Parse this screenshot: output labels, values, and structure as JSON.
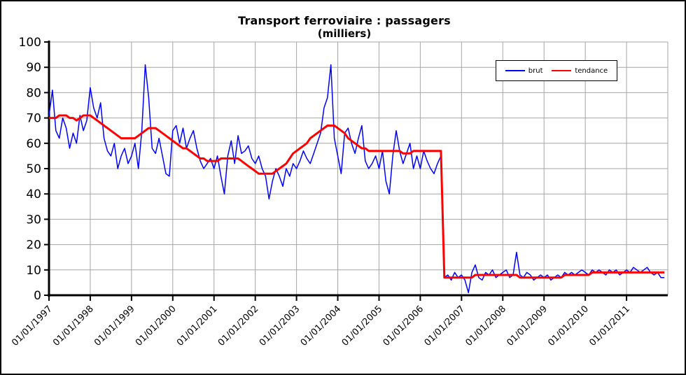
{
  "title": "Transport ferroviaire : passagers",
  "subtitle": "(milliers)",
  "legend": {
    "brut_label": "brut",
    "tendance_label": "tendance"
  },
  "colors": {
    "brut": "#0000ff",
    "tendance": "#ff0000",
    "grid": "#a6a6a6",
    "axis": "#000000",
    "background": "#ffffff"
  },
  "chart_data": {
    "type": "line",
    "title": "Transport ferroviaire : passagers (milliers)",
    "xlabel": "",
    "ylabel": "",
    "ylim": [
      0,
      100
    ],
    "y_tick_step": 10,
    "y_tick_labels": [
      "0",
      "10",
      "20",
      "30",
      "40",
      "50",
      "60",
      "70",
      "80",
      "90",
      "100"
    ],
    "x_tick_labels": [
      "01/01/1997",
      "01/01/1998",
      "01/01/1999",
      "01/01/2000",
      "01/01/2001",
      "01/01/2002",
      "01/01/2003",
      "01/01/2004",
      "01/01/2005",
      "01/01/2006",
      "01/01/2007",
      "01/01/2008",
      "01/01/2009",
      "01/01/2010",
      "01/01/2011"
    ],
    "x_frequency": "monthly",
    "grid": true,
    "legend_position": "top-right",
    "series": [
      {
        "name": "brut",
        "color": "#0000ff",
        "values": [
          71,
          81,
          65,
          62,
          70,
          66,
          58,
          64,
          60,
          71,
          65,
          69,
          82,
          74,
          70,
          76,
          62,
          57,
          55,
          60,
          50,
          55,
          58,
          52,
          55,
          60,
          50,
          65,
          91,
          78,
          58,
          56,
          62,
          55,
          48,
          47,
          65,
          67,
          60,
          66,
          58,
          62,
          65,
          58,
          53,
          50,
          52,
          54,
          50,
          55,
          47,
          40,
          55,
          61,
          52,
          63,
          56,
          57,
          59,
          54,
          52,
          55,
          50,
          47,
          38,
          45,
          50,
          47,
          43,
          50,
          47,
          52,
          50,
          53,
          57,
          54,
          52,
          56,
          60,
          64,
          74,
          78,
          91,
          62,
          55,
          48,
          64,
          66,
          60,
          56,
          62,
          67,
          53,
          50,
          52,
          55,
          50,
          57,
          45,
          40,
          55,
          65,
          57,
          52,
          56,
          60,
          50,
          55,
          50,
          57,
          53,
          50,
          48,
          52,
          55,
          7,
          8,
          6,
          9,
          7,
          8,
          6,
          1,
          9,
          12,
          7,
          6,
          9,
          8,
          10,
          7,
          8,
          9,
          10,
          7,
          8,
          17,
          8,
          7,
          9,
          8,
          6,
          7,
          8,
          7,
          8,
          6,
          7,
          8,
          7,
          9,
          8,
          9,
          8,
          9,
          10,
          9,
          8,
          10,
          9,
          10,
          9,
          8,
          10,
          9,
          10,
          8,
          9,
          10,
          9,
          11,
          10,
          9,
          10,
          11,
          9,
          8,
          9,
          7,
          7
        ]
      },
      {
        "name": "tendance",
        "color": "#ff0000",
        "values": [
          70,
          70,
          70,
          71,
          71,
          71,
          70,
          70,
          69,
          70,
          71,
          71,
          71,
          70,
          69,
          68,
          67,
          66,
          65,
          64,
          63,
          62,
          62,
          62,
          62,
          62,
          63,
          64,
          65,
          66,
          66,
          66,
          65,
          64,
          63,
          62,
          61,
          60,
          59,
          58,
          58,
          57,
          56,
          55,
          54,
          54,
          53,
          53,
          53,
          53,
          54,
          54,
          54,
          54,
          54,
          54,
          53,
          52,
          51,
          50,
          49,
          48,
          48,
          48,
          48,
          48,
          49,
          50,
          51,
          52,
          54,
          56,
          57,
          58,
          59,
          60,
          62,
          63,
          64,
          65,
          66,
          67,
          67,
          67,
          66,
          65,
          64,
          62,
          61,
          60,
          59,
          58,
          58,
          57,
          57,
          57,
          57,
          57,
          57,
          57,
          57,
          57,
          57,
          56,
          56,
          56,
          57,
          57,
          57,
          57,
          57,
          57,
          57,
          57,
          57,
          7,
          7,
          7,
          7,
          7,
          7,
          7,
          7,
          7,
          8,
          8,
          8,
          8,
          8,
          8,
          8,
          8,
          8,
          8,
          8,
          8,
          8,
          7,
          7,
          7,
          7,
          7,
          7,
          7,
          7,
          7,
          7,
          7,
          7,
          7,
          8,
          8,
          8,
          8,
          8,
          8,
          8,
          8,
          9,
          9,
          9,
          9,
          9,
          9,
          9,
          9,
          9,
          9,
          9,
          9,
          9,
          9,
          9,
          9,
          9,
          9,
          9,
          9,
          9,
          9
        ]
      }
    ]
  }
}
